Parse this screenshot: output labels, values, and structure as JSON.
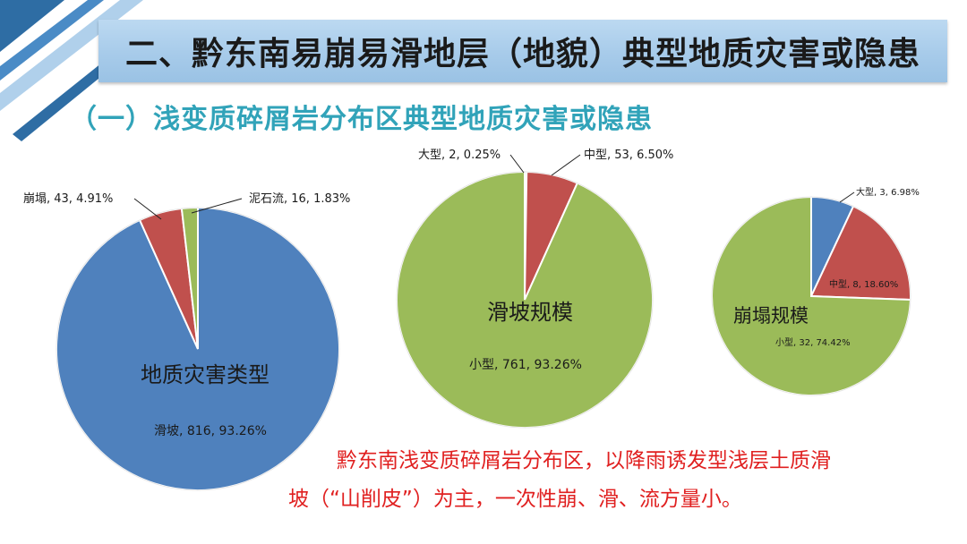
{
  "header": {
    "title": "二、黔东南易崩易滑地层（地貌）典型地质灾害或隐患",
    "subtitle": "（一）浅变质碎屑岩分布区典型地质灾害或隐患"
  },
  "colors": {
    "blue": "#4f81bd",
    "red": "#c0504d",
    "green": "#9bbb59",
    "title_bar": "#a7cbea",
    "subtitle": "#31a3b9",
    "note": "#e02020"
  },
  "note": {
    "line1": "黔东南浅变质碎屑岩分布区，以降雨诱发型浅层土质滑",
    "line2": "坡（“山削皮”）为主，一次性崩、滑、流方量小。"
  },
  "chart_data": [
    {
      "type": "pie",
      "title": "地质灾害类型",
      "slices": [
        {
          "name": "滑坡",
          "value": 816,
          "percent": "93.26%",
          "label": "滑坡, 816, 93.26%",
          "color": "#4f81bd"
        },
        {
          "name": "崩塌",
          "value": 43,
          "percent": "4.91%",
          "label": "崩塌, 43, 4.91%",
          "color": "#c0504d"
        },
        {
          "name": "泥石流",
          "value": 16,
          "percent": "1.83%",
          "label": "泥石流, 16, 1.83%",
          "color": "#9bbb59"
        }
      ]
    },
    {
      "type": "pie",
      "title": "滑坡规模",
      "slices": [
        {
          "name": "大型",
          "value": 2,
          "percent": "0.25%",
          "label": "大型, 2, 0.25%",
          "color": "#4f81bd"
        },
        {
          "name": "中型",
          "value": 53,
          "percent": "6.50%",
          "label": "中型, 53, 6.50%",
          "color": "#c0504d"
        },
        {
          "name": "小型",
          "value": 761,
          "percent": "93.26%",
          "label": "小型, 761, 93.26%",
          "color": "#9bbb59"
        }
      ]
    },
    {
      "type": "pie",
      "title": "崩塌规模",
      "slices": [
        {
          "name": "大型",
          "value": 3,
          "percent": "6.98%",
          "label": "大型, 3, 6.98%",
          "color": "#4f81bd"
        },
        {
          "name": "中型",
          "value": 8,
          "percent": "18.60%",
          "label": "中型, 8, 18.60%",
          "color": "#c0504d"
        },
        {
          "name": "小型",
          "value": 32,
          "percent": "74.42%",
          "label": "小型, 32, 74.42%",
          "color": "#9bbb59"
        }
      ]
    }
  ]
}
